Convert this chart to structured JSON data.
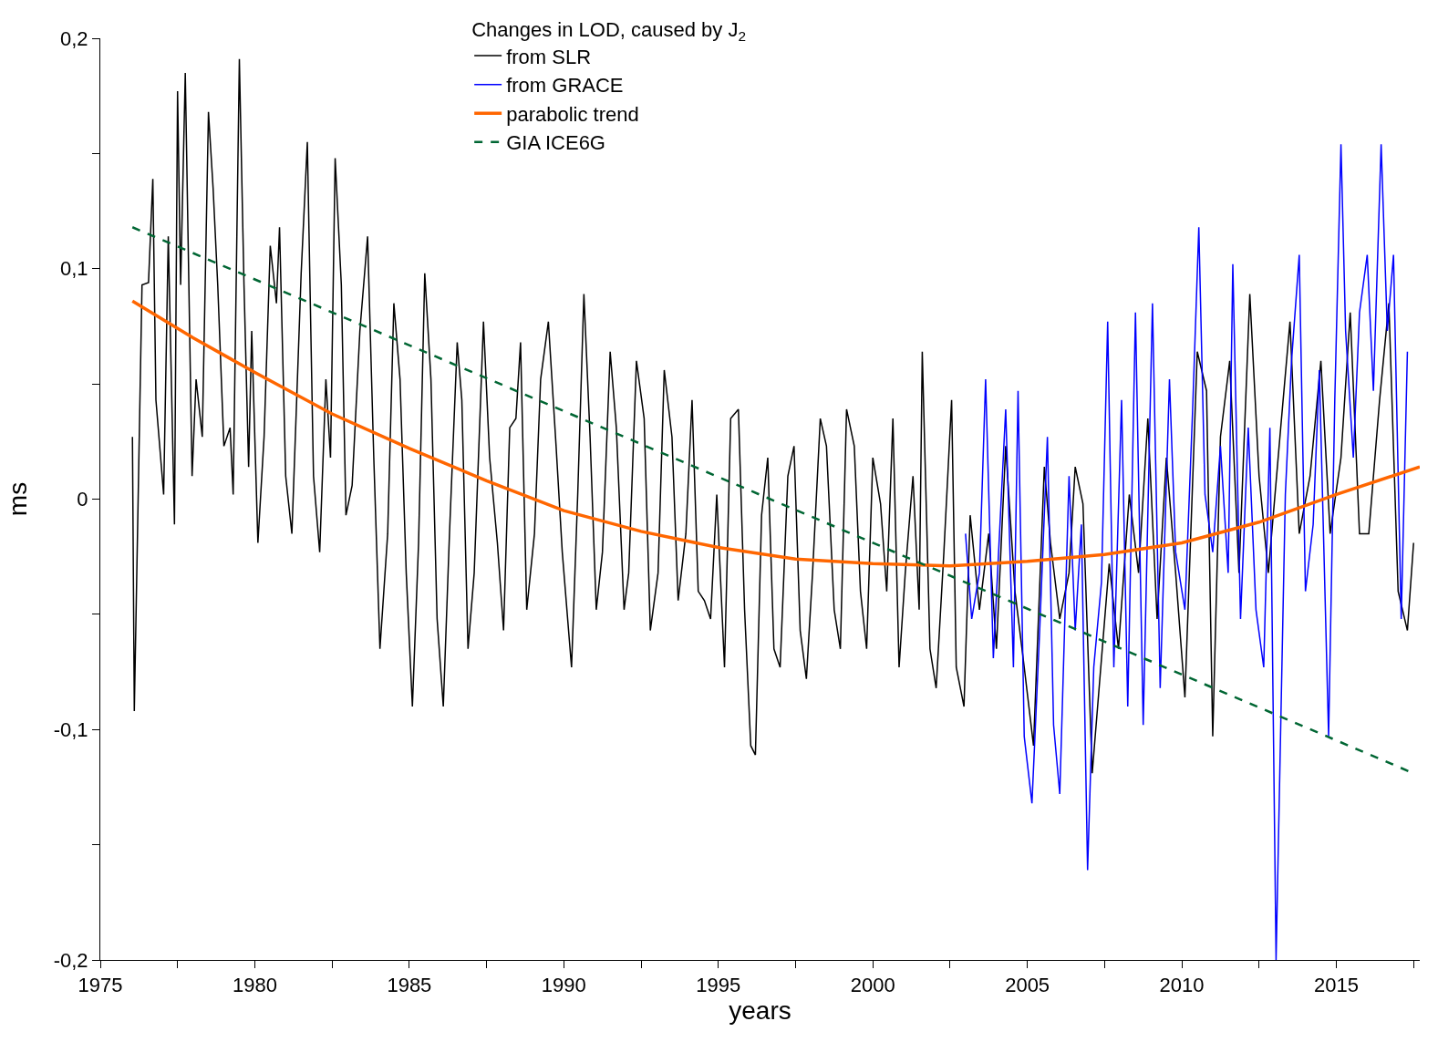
{
  "chart_data": {
    "type": "line",
    "xlabel": "years",
    "ylabel": "ms",
    "legend_title": "Changes in LOD, caused by J$_{2}$",
    "xlim": [
      1975,
      2017.7
    ],
    "ylim": [
      -0.2,
      0.2
    ],
    "xticks": [
      1975,
      {
        "value": 1977.5,
        "label": null
      },
      1980,
      {
        "value": 1982.5,
        "label": null
      },
      1985,
      {
        "value": 1987.5,
        "label": null
      },
      1990,
      {
        "value": 1992.5,
        "label": null
      },
      1995,
      {
        "value": 1997.5,
        "label": null
      },
      2000,
      {
        "value": 2002.5,
        "label": null
      },
      2005,
      {
        "value": 2007.5,
        "label": null
      },
      2010,
      {
        "value": 2012.5,
        "label": null
      },
      2015,
      {
        "value": 2017.5,
        "label": null
      }
    ],
    "yticks": [
      {
        "value": -0.2,
        "label": "-0,2"
      },
      {
        "value": -0.15,
        "label": null
      },
      {
        "value": -0.1,
        "label": "-0,1"
      },
      {
        "value": -0.05,
        "label": null
      },
      0,
      {
        "value": 0.05,
        "label": null
      },
      {
        "value": 0.1,
        "label": "0,1"
      },
      {
        "value": 0.15,
        "label": null
      },
      {
        "value": 0.2,
        "label": "0,2"
      }
    ],
    "grid": false,
    "legend": "top",
    "marker": "none",
    "series": [
      {
        "name": "from SLR",
        "color": "#000000",
        "line_style": "solid",
        "x": [
          1976.04,
          1976.1,
          1976.35,
          1976.56,
          1976.7,
          1976.8,
          1977.05,
          1977.2,
          1977.4,
          1977.5,
          1977.6,
          1977.75,
          1977.97,
          1978.1,
          1978.3,
          1978.5,
          1978.65,
          1978.8,
          1979.0,
          1979.2,
          1979.3,
          1979.5,
          1979.65,
          1979.8,
          1979.9,
          1980.1,
          1980.3,
          1980.5,
          1980.7,
          1980.8,
          1981.0,
          1981.2,
          1981.4,
          1981.5,
          1981.7,
          1981.9,
          1982.1,
          1982.3,
          1982.45,
          1982.6,
          1982.8,
          1982.95,
          1983.15,
          1983.4,
          1983.65,
          1983.85,
          1984.05,
          1984.3,
          1984.5,
          1984.7,
          1984.9,
          1985.1,
          1985.3,
          1985.5,
          1985.7,
          1985.9,
          1986.1,
          1986.3,
          1986.55,
          1986.7,
          1986.9,
          1987.1,
          1987.4,
          1987.6,
          1987.85,
          1988.05,
          1988.25,
          1988.45,
          1988.6,
          1988.8,
          1989.05,
          1989.25,
          1989.5,
          1989.75,
          1989.95,
          1990.25,
          1990.45,
          1990.65,
          1990.85,
          1991.05,
          1991.25,
          1991.5,
          1991.7,
          1991.95,
          1992.1,
          1992.35,
          1992.6,
          1992.8,
          1993.05,
          1993.25,
          1993.5,
          1993.7,
          1993.95,
          1994.15,
          1994.35,
          1994.55,
          1994.75,
          1994.95,
          1995.2,
          1995.4,
          1995.65,
          1995.85,
          1996.05,
          1996.2,
          1996.4,
          1996.6,
          1996.8,
          1997.0,
          1997.25,
          1997.45,
          1997.65,
          1997.85,
          1998.05,
          1998.3,
          1998.5,
          1998.75,
          1998.95,
          1999.15,
          1999.4,
          1999.6,
          1999.8,
          2000.0,
          2000.25,
          2000.45,
          2000.65,
          2000.85,
          2001.05,
          2001.3,
          2001.5,
          2001.6,
          2001.85,
          2002.05,
          2002.3,
          2002.55,
          2002.7,
          2002.95,
          2003.15,
          2003.45,
          2003.75,
          2004.0,
          2004.3,
          2004.6,
          2004.9,
          2005.2,
          2005.55,
          2005.75,
          2006.05,
          2006.35,
          2006.55,
          2006.8,
          2007.1,
          2007.45,
          2007.65,
          2007.95,
          2008.3,
          2008.6,
          2008.9,
          2009.2,
          2009.5,
          2009.8,
          2010.1,
          2010.5,
          2010.8,
          2011.0,
          2011.25,
          2011.55,
          2011.85,
          2012.2,
          2012.5,
          2012.8,
          2013.2,
          2013.5,
          2013.8,
          2014.15,
          2014.5,
          2014.8,
          2015.15,
          2015.45,
          2015.75,
          2016.05,
          2016.4,
          2016.7,
          2017.0,
          2017.3,
          2017.5
        ],
        "values": [
          0.027,
          -0.092,
          0.093,
          0.094,
          0.139,
          0.043,
          0.002,
          0.114,
          -0.011,
          0.177,
          0.093,
          0.185,
          0.01,
          0.052,
          0.027,
          0.168,
          0.135,
          0.093,
          0.023,
          0.031,
          0.002,
          0.191,
          0.093,
          0.014,
          0.073,
          -0.019,
          0.027,
          0.11,
          0.085,
          0.118,
          0.01,
          -0.015,
          0.06,
          0.098,
          0.155,
          0.01,
          -0.023,
          0.052,
          0.018,
          0.148,
          0.093,
          -0.007,
          0.006,
          0.073,
          0.114,
          0.018,
          -0.065,
          -0.015,
          0.085,
          0.052,
          -0.032,
          -0.09,
          -0.019,
          0.098,
          0.052,
          -0.052,
          -0.09,
          -0.015,
          0.068,
          0.043,
          -0.065,
          -0.032,
          0.077,
          0.018,
          -0.019,
          -0.057,
          0.031,
          0.035,
          0.068,
          -0.048,
          -0.015,
          0.052,
          0.077,
          0.023,
          -0.023,
          -0.073,
          0.002,
          0.089,
          0.027,
          -0.048,
          -0.023,
          0.064,
          0.031,
          -0.048,
          -0.032,
          0.06,
          0.035,
          -0.057,
          -0.032,
          0.056,
          0.027,
          -0.044,
          -0.015,
          0.043,
          -0.04,
          -0.044,
          -0.052,
          0.002,
          -0.073,
          0.035,
          0.039,
          -0.048,
          -0.107,
          -0.111,
          -0.007,
          0.018,
          -0.065,
          -0.073,
          0.01,
          0.023,
          -0.057,
          -0.078,
          -0.032,
          0.035,
          0.023,
          -0.048,
          -0.065,
          0.039,
          0.023,
          -0.04,
          -0.065,
          0.018,
          -0.002,
          -0.04,
          0.035,
          -0.073,
          -0.032,
          0.01,
          -0.048,
          0.064,
          -0.065,
          -0.082,
          -0.023,
          0.043,
          -0.073,
          -0.09,
          -0.007,
          -0.048,
          -0.015,
          -0.065,
          0.023,
          -0.04,
          -0.073,
          -0.107,
          0.014,
          -0.019,
          -0.052,
          -0.032,
          0.014,
          -0.002,
          -0.119,
          -0.061,
          -0.028,
          -0.065,
          0.002,
          -0.032,
          0.035,
          -0.052,
          0.018,
          -0.032,
          -0.086,
          0.064,
          0.047,
          -0.103,
          0.027,
          0.06,
          -0.032,
          0.089,
          0.01,
          -0.032,
          0.031,
          0.077,
          -0.015,
          0.01,
          0.06,
          -0.015,
          0.018,
          0.081,
          -0.015,
          -0.015,
          0.043,
          0.085,
          -0.04,
          -0.057,
          -0.019
        ]
      },
      {
        "name": "from GRACE",
        "color": "#0000ff",
        "line_style": "solid",
        "x": [
          2003.0,
          2003.2,
          2003.45,
          2003.65,
          2003.9,
          2004.1,
          2004.3,
          2004.55,
          2004.7,
          2004.9,
          2005.15,
          2005.4,
          2005.65,
          2005.85,
          2006.05,
          2006.35,
          2006.55,
          2006.75,
          2006.95,
          2007.15,
          2007.4,
          2007.6,
          2007.8,
          2008.05,
          2008.25,
          2008.5,
          2008.75,
          2009.05,
          2009.3,
          2009.6,
          2009.8,
          2010.1,
          2010.35,
          2010.55,
          2010.75,
          2011.0,
          2011.25,
          2011.5,
          2011.65,
          2011.9,
          2012.15,
          2012.4,
          2012.65,
          2012.85,
          2013.05,
          2013.35,
          2013.55,
          2013.8,
          2014.0,
          2014.25,
          2014.45,
          2014.75,
          2014.95,
          2015.15,
          2015.3,
          2015.55,
          2015.75,
          2016.0,
          2016.2,
          2016.45,
          2016.65,
          2016.85,
          2017.1,
          2017.3
        ],
        "values": [
          -0.015,
          -0.052,
          -0.032,
          0.052,
          -0.069,
          -0.015,
          0.039,
          -0.073,
          0.047,
          -0.103,
          -0.132,
          -0.057,
          0.027,
          -0.098,
          -0.128,
          0.01,
          -0.057,
          -0.011,
          -0.161,
          -0.073,
          -0.036,
          0.077,
          -0.073,
          0.043,
          -0.09,
          0.081,
          -0.098,
          0.085,
          -0.082,
          0.052,
          -0.023,
          -0.048,
          0.039,
          0.118,
          0.002,
          -0.023,
          0.023,
          -0.032,
          0.102,
          -0.052,
          0.031,
          -0.048,
          -0.073,
          0.031,
          -0.2,
          0.002,
          0.06,
          0.106,
          -0.04,
          -0.011,
          0.056,
          -0.103,
          0.043,
          0.154,
          0.073,
          0.018,
          0.081,
          0.106,
          0.047,
          0.154,
          0.073,
          0.106,
          -0.052,
          0.064
        ]
      },
      {
        "name": "parabolic trend",
        "color": "#ff6600",
        "line_style": "solid",
        "x": [
          1976.04,
          1978,
          1980,
          1982.5,
          1985,
          1987.5,
          1990,
          1992.5,
          1995,
          1997.5,
          2000,
          2002.5,
          2005,
          2007.5,
          2010,
          2012.5,
          2015,
          2017.7
        ],
        "values": [
          0.086,
          0.07,
          0.055,
          0.037,
          0.022,
          0.008,
          -0.005,
          -0.014,
          -0.021,
          -0.026,
          -0.028,
          -0.029,
          -0.027,
          -0.024,
          -0.019,
          -0.01,
          0.002,
          0.014
        ]
      },
      {
        "name": "GIA ICE6G",
        "color": "#006633",
        "line_style": "dashed",
        "x": [
          1976.04,
          2017.5
        ],
        "values": [
          0.118,
          -0.119
        ]
      }
    ]
  }
}
